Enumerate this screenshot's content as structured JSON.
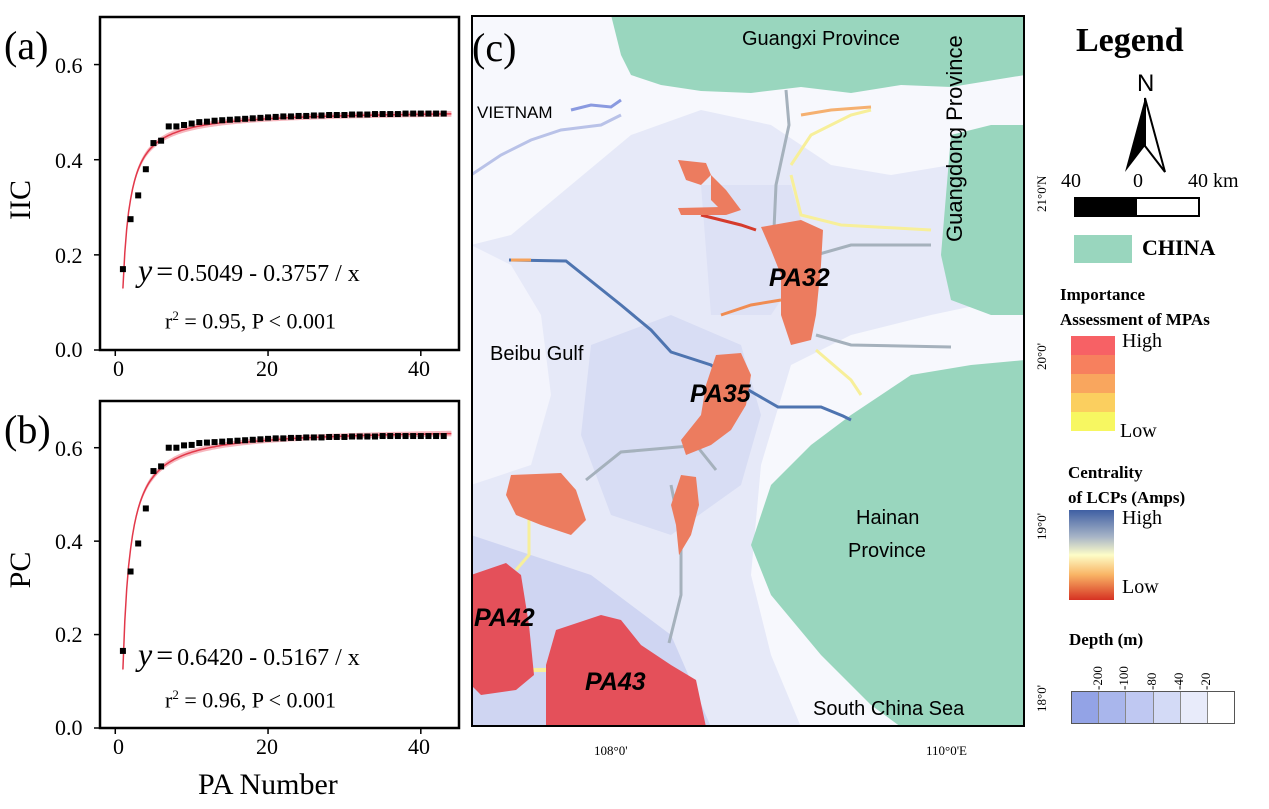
{
  "panels": {
    "a": {
      "letter": "(a)",
      "ylabel": "IIC",
      "equation_y": "y",
      "equation_eq": "=",
      "equation_body": "0.5049 - 0.3757 / x",
      "stats": "r",
      "stats_sup": "2",
      "stats_rest": " = 0.95, P < 0.001",
      "yticks": [
        "0.0",
        "0.2",
        "0.4",
        "0.6"
      ],
      "xticks": [
        "0",
        "20",
        "40"
      ]
    },
    "b": {
      "letter": "(b)",
      "ylabel": "PC",
      "equation_y": "y",
      "equation_eq": "=",
      "equation_body": "0.6420 - 0.5167 / x",
      "stats": "r",
      "stats_sup": "2",
      "stats_rest": " = 0.96, P < 0.001",
      "yticks": [
        "0.0",
        "0.2",
        "0.4",
        "0.6"
      ],
      "xticks": [
        "0",
        "20",
        "40"
      ],
      "xlabel": "PA Number"
    },
    "c": {
      "letter": "(c)"
    }
  },
  "chart_data": [
    {
      "type": "scatter",
      "ylabel": "IIC",
      "xlim": [
        -2,
        45
      ],
      "ylim": [
        0,
        0.7
      ],
      "fit": {
        "a": 0.5049,
        "b": 0.3757
      },
      "series": [
        {
          "x": [
            1,
            2,
            3,
            4,
            5,
            6,
            7,
            8,
            9,
            10,
            11,
            12,
            13,
            14,
            15,
            16,
            17,
            18,
            19,
            20,
            21,
            22,
            23,
            24,
            25,
            26,
            27,
            28,
            29,
            30,
            31,
            32,
            33,
            34,
            35,
            36,
            37,
            38,
            39,
            40,
            41,
            42,
            43
          ],
          "y": [
            0.17,
            0.275,
            0.325,
            0.38,
            0.435,
            0.44,
            0.47,
            0.47,
            0.473,
            0.476,
            0.479,
            0.48,
            0.482,
            0.483,
            0.484,
            0.485,
            0.486,
            0.487,
            0.488,
            0.489,
            0.49,
            0.491,
            0.491,
            0.492,
            0.492,
            0.493,
            0.493,
            0.494,
            0.494,
            0.494,
            0.495,
            0.495,
            0.495,
            0.496,
            0.496,
            0.496,
            0.496,
            0.497,
            0.497,
            0.497,
            0.497,
            0.497,
            0.497
          ]
        }
      ]
    },
    {
      "type": "scatter",
      "ylabel": "PC",
      "xlabel": "PA Number",
      "xlim": [
        -2,
        45
      ],
      "ylim": [
        0,
        0.7
      ],
      "fit": {
        "a": 0.642,
        "b": 0.5167
      },
      "series": [
        {
          "x": [
            1,
            2,
            3,
            4,
            5,
            6,
            7,
            8,
            9,
            10,
            11,
            12,
            13,
            14,
            15,
            16,
            17,
            18,
            19,
            20,
            21,
            22,
            23,
            24,
            25,
            26,
            27,
            28,
            29,
            30,
            31,
            32,
            33,
            34,
            35,
            36,
            37,
            38,
            39,
            40,
            41,
            42,
            43
          ],
          "y": [
            0.165,
            0.335,
            0.395,
            0.47,
            0.55,
            0.56,
            0.6,
            0.6,
            0.605,
            0.606,
            0.61,
            0.611,
            0.612,
            0.613,
            0.614,
            0.615,
            0.616,
            0.617,
            0.618,
            0.619,
            0.62,
            0.62,
            0.621,
            0.621,
            0.622,
            0.622,
            0.622,
            0.623,
            0.623,
            0.623,
            0.624,
            0.624,
            0.624,
            0.624,
            0.625,
            0.625,
            0.625,
            0.625,
            0.625,
            0.625,
            0.625,
            0.625,
            0.625
          ]
        }
      ]
    }
  ],
  "map": {
    "labels": {
      "guangxi": "Guangxi Province",
      "vietnam": "VIETNAM",
      "guangdong": "Guangdong Province",
      "beibu": "Beibu Gulf",
      "hainan_1": "Hainan",
      "hainan_2": "Province",
      "scs": "South China Sea",
      "pa32": "PA32",
      "pa35": "PA35",
      "pa42": "PA42",
      "pa43": "PA43"
    },
    "coords": {
      "lat21": "21°0'N",
      "lat20": "20°0'",
      "lat19": "19°0'",
      "lat18": "18°0'",
      "lon108": "108°0'",
      "lon110": "110°0'E"
    },
    "colors": {
      "land": "#99d6be",
      "sea": "#e6e9f8",
      "pa_medium": "#ec7c5f",
      "pa_high": "#e4505a"
    }
  },
  "legend": {
    "title": "Legend",
    "north": "N",
    "scale_left": "40",
    "scale_mid": "0",
    "scale_right": "40 km",
    "china": "CHINA",
    "importance_title_1": "Importance",
    "importance_title_2": "Assessment of  MPAs",
    "importance_high": "High",
    "importance_low": "Low",
    "importance_colors": [
      "#f76165",
      "#f7805e",
      "#f9a65e",
      "#fbcf5f",
      "#f7f761"
    ],
    "centrality_title_1": "Centrality",
    "centrality_title_2": "of LCPs (Amps)",
    "centrality_high": "High",
    "centrality_low": "Low",
    "depth_title": "Depth (m)",
    "depth_values": [
      "-200",
      "-100",
      "-80",
      "-40",
      "-20"
    ],
    "depth_colors": [
      "#93a3e6",
      "#a9b6ec",
      "#bfc8f2",
      "#d3daf6",
      "#e8ebfa",
      "#ffffff"
    ]
  }
}
